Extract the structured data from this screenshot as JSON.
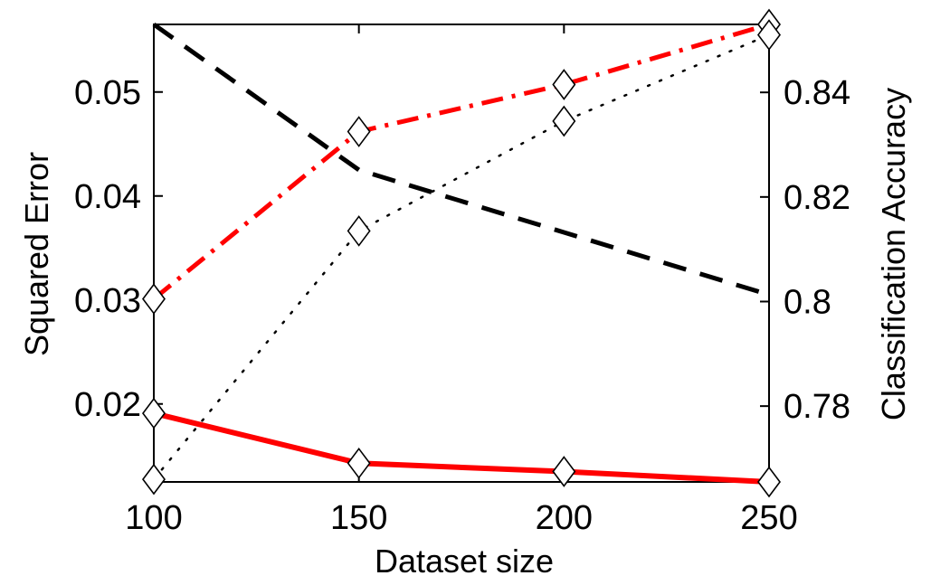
{
  "chart_data": {
    "type": "line",
    "title": "",
    "xlabel": "Dataset size",
    "ylabel_left": "Squared Error",
    "ylabel_right": "Classification Accuracy",
    "x": [
      100,
      150,
      200,
      250
    ],
    "xlim": [
      100,
      250
    ],
    "xticks": [
      "100",
      "150",
      "200",
      "250"
    ],
    "ylim_left": [
      0.0125,
      0.0565
    ],
    "yticks_left": [
      "0.02",
      "0.03",
      "0.04",
      "0.05"
    ],
    "ytick_values_left": [
      0.02,
      0.03,
      0.04,
      0.05
    ],
    "ylim_right": [
      0.7655,
      0.853
    ],
    "yticks_right": [
      "0.78",
      "0.8",
      "0.82",
      "0.84"
    ],
    "ytick_values_right": [
      0.78,
      0.8,
      0.82,
      0.84
    ],
    "grid": false,
    "series": [
      {
        "axis": "left",
        "style": "solid",
        "color": "#ff0000",
        "marker": "diamond",
        "values": [
          0.0191,
          0.0143,
          0.0135,
          0.0125
        ]
      },
      {
        "axis": "left",
        "style": "dashed",
        "color": "#000000",
        "marker": "none",
        "values": [
          0.0565,
          0.0425,
          0.0365,
          0.0305
        ]
      },
      {
        "axis": "right",
        "style": "dashdot",
        "color": "#ff0000",
        "marker": "diamond",
        "values": [
          0.8005,
          0.8325,
          0.8415,
          0.853
        ]
      },
      {
        "axis": "right",
        "style": "dotted",
        "color": "#000000",
        "marker": "diamond",
        "values": [
          0.766,
          0.8135,
          0.8345,
          0.851
        ]
      }
    ]
  }
}
